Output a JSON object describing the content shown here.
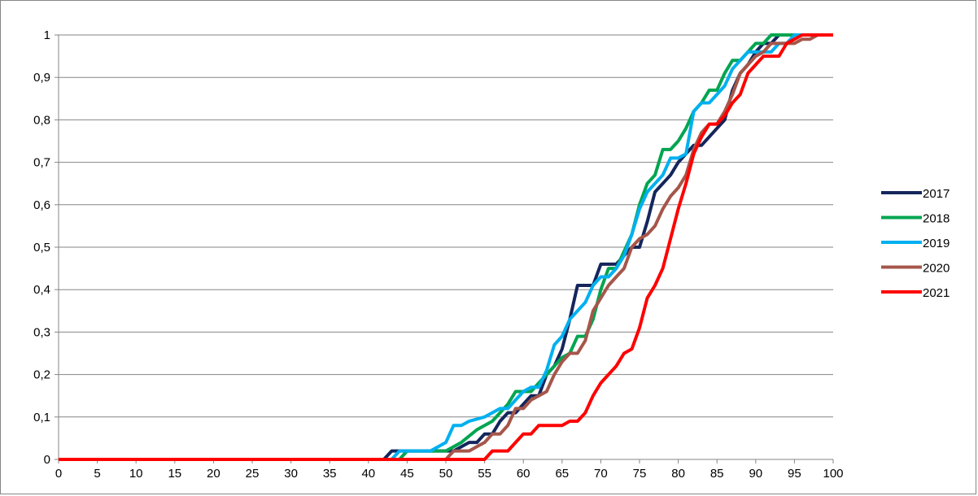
{
  "chart_data": {
    "type": "line",
    "title": "",
    "xlabel": "",
    "ylabel": "",
    "xlim": [
      0,
      100
    ],
    "ylim": [
      0,
      1
    ],
    "x_ticks": [
      "0",
      "5",
      "10",
      "15",
      "20",
      "25",
      "30",
      "35",
      "40",
      "45",
      "50",
      "55",
      "60",
      "65",
      "70",
      "75",
      "80",
      "85",
      "90",
      "95",
      "100"
    ],
    "y_ticks": [
      "0",
      "0,1",
      "0,2",
      "0,3",
      "0,4",
      "0,5",
      "0,6",
      "0,7",
      "0,8",
      "0,9",
      "1"
    ],
    "grid": "horizontal",
    "legend_position": "right",
    "series": [
      {
        "name": "2017",
        "color": "#14265c",
        "points": [
          [
            0,
            0
          ],
          [
            42,
            0
          ],
          [
            43,
            0.02
          ],
          [
            47,
            0.02
          ],
          [
            49,
            0.02
          ],
          [
            51,
            0.02
          ],
          [
            53,
            0.04
          ],
          [
            54,
            0.04
          ],
          [
            55,
            0.06
          ],
          [
            56,
            0.06
          ],
          [
            57,
            0.09
          ],
          [
            58,
            0.11
          ],
          [
            59,
            0.11
          ],
          [
            60,
            0.13
          ],
          [
            61,
            0.15
          ],
          [
            62,
            0.15
          ],
          [
            63,
            0.2
          ],
          [
            64,
            0.22
          ],
          [
            65,
            0.26
          ],
          [
            66,
            0.33
          ],
          [
            67,
            0.41
          ],
          [
            68,
            0.41
          ],
          [
            69,
            0.41
          ],
          [
            70,
            0.46
          ],
          [
            71,
            0.46
          ],
          [
            72,
            0.46
          ],
          [
            73,
            0.48
          ],
          [
            74,
            0.5
          ],
          [
            75,
            0.5
          ],
          [
            76,
            0.56
          ],
          [
            77,
            0.63
          ],
          [
            78,
            0.65
          ],
          [
            79,
            0.67
          ],
          [
            80,
            0.7
          ],
          [
            81,
            0.72
          ],
          [
            82,
            0.74
          ],
          [
            83,
            0.74
          ],
          [
            84,
            0.76
          ],
          [
            85,
            0.78
          ],
          [
            86,
            0.8
          ],
          [
            87,
            0.87
          ],
          [
            88,
            0.91
          ],
          [
            89,
            0.93
          ],
          [
            90,
            0.96
          ],
          [
            91,
            0.98
          ],
          [
            92,
            0.98
          ],
          [
            93,
            1
          ],
          [
            100,
            1
          ]
        ]
      },
      {
        "name": "2018",
        "color": "#00a550",
        "points": [
          [
            0,
            0
          ],
          [
            44,
            0
          ],
          [
            45,
            0.02
          ],
          [
            49,
            0.02
          ],
          [
            50,
            0.02
          ],
          [
            52,
            0.04
          ],
          [
            54,
            0.07
          ],
          [
            56,
            0.09
          ],
          [
            57,
            0.11
          ],
          [
            58,
            0.13
          ],
          [
            59,
            0.16
          ],
          [
            60,
            0.16
          ],
          [
            61,
            0.16
          ],
          [
            62,
            0.18
          ],
          [
            63,
            0.2
          ],
          [
            64,
            0.22
          ],
          [
            65,
            0.24
          ],
          [
            66,
            0.25
          ],
          [
            67,
            0.29
          ],
          [
            68,
            0.29
          ],
          [
            69,
            0.33
          ],
          [
            70,
            0.4
          ],
          [
            71,
            0.45
          ],
          [
            72,
            0.45
          ],
          [
            73,
            0.49
          ],
          [
            74,
            0.53
          ],
          [
            75,
            0.6
          ],
          [
            76,
            0.65
          ],
          [
            77,
            0.67
          ],
          [
            78,
            0.73
          ],
          [
            79,
            0.73
          ],
          [
            80,
            0.75
          ],
          [
            81,
            0.78
          ],
          [
            82,
            0.82
          ],
          [
            83,
            0.84
          ],
          [
            84,
            0.87
          ],
          [
            85,
            0.87
          ],
          [
            86,
            0.91
          ],
          [
            87,
            0.94
          ],
          [
            88,
            0.94
          ],
          [
            89,
            0.96
          ],
          [
            90,
            0.98
          ],
          [
            91,
            0.98
          ],
          [
            92,
            1
          ],
          [
            100,
            1
          ]
        ]
      },
      {
        "name": "2019",
        "color": "#00b0f0",
        "points": [
          [
            0,
            0
          ],
          [
            43,
            0
          ],
          [
            44,
            0.02
          ],
          [
            48,
            0.02
          ],
          [
            50,
            0.04
          ],
          [
            51,
            0.08
          ],
          [
            52,
            0.08
          ],
          [
            53,
            0.09
          ],
          [
            55,
            0.1
          ],
          [
            56,
            0.11
          ],
          [
            57,
            0.12
          ],
          [
            58,
            0.12
          ],
          [
            59,
            0.14
          ],
          [
            60,
            0.16
          ],
          [
            61,
            0.17
          ],
          [
            62,
            0.17
          ],
          [
            63,
            0.21
          ],
          [
            64,
            0.27
          ],
          [
            65,
            0.29
          ],
          [
            66,
            0.33
          ],
          [
            67,
            0.35
          ],
          [
            68,
            0.37
          ],
          [
            69,
            0.41
          ],
          [
            70,
            0.43
          ],
          [
            71,
            0.43
          ],
          [
            72,
            0.45
          ],
          [
            73,
            0.48
          ],
          [
            74,
            0.53
          ],
          [
            75,
            0.59
          ],
          [
            76,
            0.63
          ],
          [
            77,
            0.65
          ],
          [
            78,
            0.67
          ],
          [
            79,
            0.71
          ],
          [
            80,
            0.71
          ],
          [
            81,
            0.72
          ],
          [
            82,
            0.82
          ],
          [
            83,
            0.84
          ],
          [
            84,
            0.84
          ],
          [
            85,
            0.86
          ],
          [
            86,
            0.88
          ],
          [
            87,
            0.92
          ],
          [
            88,
            0.94
          ],
          [
            89,
            0.96
          ],
          [
            90,
            0.96
          ],
          [
            91,
            0.96
          ],
          [
            92,
            0.96
          ],
          [
            93,
            0.98
          ],
          [
            94,
            0.98
          ],
          [
            95,
            1
          ],
          [
            100,
            1
          ]
        ]
      },
      {
        "name": "2020",
        "color": "#a5564a",
        "points": [
          [
            0,
            0
          ],
          [
            50,
            0
          ],
          [
            51,
            0.02
          ],
          [
            52,
            0.02
          ],
          [
            53,
            0.02
          ],
          [
            54,
            0.03
          ],
          [
            55,
            0.04
          ],
          [
            56,
            0.06
          ],
          [
            57,
            0.06
          ],
          [
            58,
            0.08
          ],
          [
            59,
            0.12
          ],
          [
            60,
            0.12
          ],
          [
            61,
            0.14
          ],
          [
            62,
            0.15
          ],
          [
            63,
            0.16
          ],
          [
            64,
            0.2
          ],
          [
            65,
            0.23
          ],
          [
            66,
            0.25
          ],
          [
            67,
            0.25
          ],
          [
            68,
            0.28
          ],
          [
            69,
            0.35
          ],
          [
            70,
            0.38
          ],
          [
            71,
            0.41
          ],
          [
            72,
            0.43
          ],
          [
            73,
            0.45
          ],
          [
            74,
            0.5
          ],
          [
            75,
            0.52
          ],
          [
            76,
            0.53
          ],
          [
            77,
            0.55
          ],
          [
            78,
            0.59
          ],
          [
            79,
            0.62
          ],
          [
            80,
            0.64
          ],
          [
            81,
            0.67
          ],
          [
            82,
            0.73
          ],
          [
            83,
            0.77
          ],
          [
            84,
            0.79
          ],
          [
            85,
            0.79
          ],
          [
            86,
            0.82
          ],
          [
            87,
            0.86
          ],
          [
            88,
            0.91
          ],
          [
            89,
            0.93
          ],
          [
            90,
            0.95
          ],
          [
            91,
            0.96
          ],
          [
            92,
            0.98
          ],
          [
            93,
            0.98
          ],
          [
            94,
            0.98
          ],
          [
            95,
            0.98
          ],
          [
            96,
            0.99
          ],
          [
            97,
            0.99
          ],
          [
            98,
            1
          ],
          [
            100,
            1
          ]
        ]
      },
      {
        "name": "2021",
        "color": "#ff0000",
        "points": [
          [
            0,
            0
          ],
          [
            55,
            0
          ],
          [
            56,
            0.02
          ],
          [
            58,
            0.02
          ],
          [
            59,
            0.04
          ],
          [
            60,
            0.06
          ],
          [
            61,
            0.06
          ],
          [
            62,
            0.08
          ],
          [
            64,
            0.08
          ],
          [
            65,
            0.08
          ],
          [
            66,
            0.09
          ],
          [
            67,
            0.09
          ],
          [
            68,
            0.11
          ],
          [
            69,
            0.15
          ],
          [
            70,
            0.18
          ],
          [
            71,
            0.2
          ],
          [
            72,
            0.22
          ],
          [
            73,
            0.25
          ],
          [
            74,
            0.26
          ],
          [
            75,
            0.31
          ],
          [
            76,
            0.38
          ],
          [
            77,
            0.41
          ],
          [
            78,
            0.45
          ],
          [
            79,
            0.52
          ],
          [
            80,
            0.59
          ],
          [
            81,
            0.65
          ],
          [
            82,
            0.72
          ],
          [
            83,
            0.76
          ],
          [
            84,
            0.79
          ],
          [
            85,
            0.79
          ],
          [
            86,
            0.81
          ],
          [
            87,
            0.84
          ],
          [
            88,
            0.86
          ],
          [
            89,
            0.91
          ],
          [
            90,
            0.93
          ],
          [
            91,
            0.95
          ],
          [
            92,
            0.95
          ],
          [
            93,
            0.95
          ],
          [
            94,
            0.98
          ],
          [
            95,
            0.99
          ],
          [
            96,
            1
          ],
          [
            100,
            1
          ]
        ]
      }
    ]
  }
}
